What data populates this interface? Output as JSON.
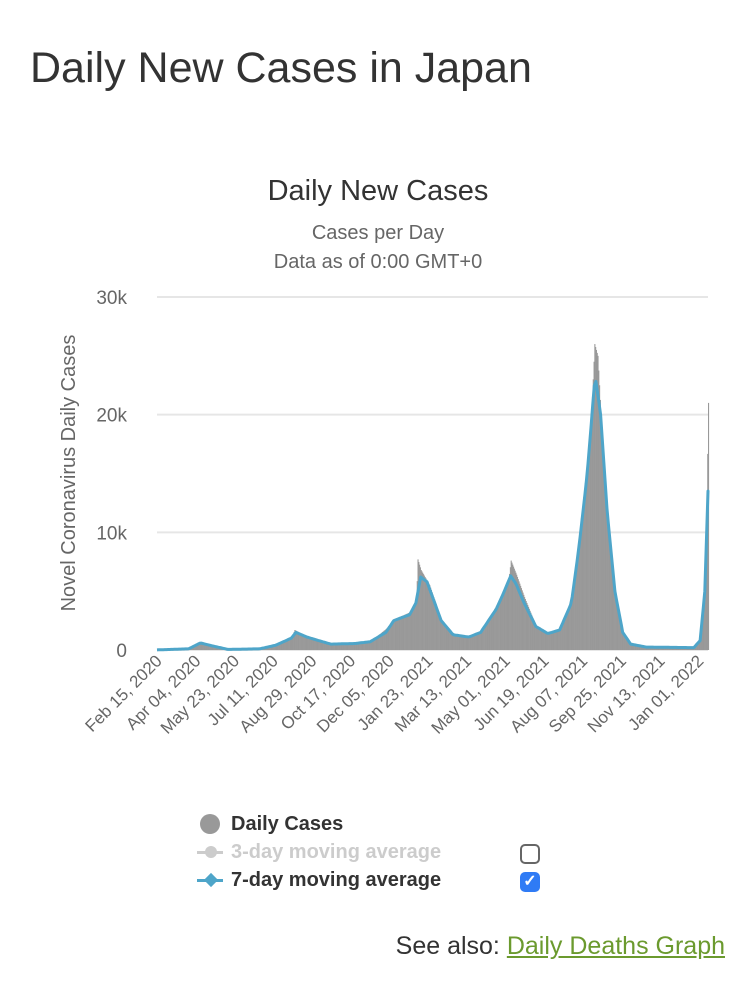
{
  "page_title": "Daily New Cases in Japan",
  "chart_data": {
    "type": "bar",
    "title": "Daily New Cases",
    "subtitle": [
      "Cases per Day",
      "Data as of 0:00 GMT+0"
    ],
    "ylabel": "Novel Coronavirus Daily Cases",
    "xlabel": "",
    "x_start": "2020-02-15",
    "x_unit": "days since start",
    "xlim": [
      0,
      698
    ],
    "ylim": [
      0,
      30000
    ],
    "yticks": [
      0,
      10000,
      20000,
      30000
    ],
    "ytick_labels": [
      "0",
      "10k",
      "20k",
      "30k"
    ],
    "xtick_labels": [
      "Feb 15, 2020",
      "Apr 04, 2020",
      "May 23, 2020",
      "Jul 11, 2020",
      "Aug 29, 2020",
      "Oct 17, 2020",
      "Dec 05, 2020",
      "Jan 23, 2021",
      "Mar 13, 2021",
      "May 01, 2021",
      "Jun 19, 2021",
      "Aug 07, 2021",
      "Sep 25, 2021",
      "Nov 13, 2021",
      "Jan 01, 2022"
    ],
    "xtick_step_days": 49,
    "grid": true,
    "series": [
      {
        "name": "Daily Cases",
        "kind": "bar",
        "color": "#999999",
        "points": [
          [
            0,
            10
          ],
          [
            40,
            100
          ],
          [
            55,
            650
          ],
          [
            70,
            350
          ],
          [
            90,
            50
          ],
          [
            130,
            100
          ],
          [
            150,
            400
          ],
          [
            170,
            1000
          ],
          [
            174,
            1700
          ],
          [
            190,
            1100
          ],
          [
            220,
            500
          ],
          [
            250,
            550
          ],
          [
            270,
            700
          ],
          [
            290,
            1800
          ],
          [
            300,
            2600
          ],
          [
            320,
            3200
          ],
          [
            328,
            4000
          ],
          [
            330,
            7700
          ],
          [
            334,
            6800
          ],
          [
            345,
            5500
          ],
          [
            360,
            2500
          ],
          [
            375,
            1300
          ],
          [
            395,
            1100
          ],
          [
            410,
            1500
          ],
          [
            430,
            3800
          ],
          [
            440,
            5300
          ],
          [
            445,
            5900
          ],
          [
            448,
            7600
          ],
          [
            455,
            6400
          ],
          [
            465,
            4500
          ],
          [
            480,
            2000
          ],
          [
            495,
            1400
          ],
          [
            510,
            1800
          ],
          [
            525,
            4200
          ],
          [
            535,
            10000
          ],
          [
            545,
            16000
          ],
          [
            550,
            20000
          ],
          [
            554,
            26000
          ],
          [
            558,
            25000
          ],
          [
            562,
            20000
          ],
          [
            570,
            12000
          ],
          [
            580,
            5000
          ],
          [
            590,
            1500
          ],
          [
            600,
            500
          ],
          [
            620,
            250
          ],
          [
            680,
            200
          ],
          [
            688,
            800
          ],
          [
            692,
            3000
          ],
          [
            695,
            8000
          ],
          [
            698,
            21000
          ]
        ]
      },
      {
        "name": "3-day moving average",
        "kind": "line",
        "color": "#cccccc",
        "visible": false
      },
      {
        "name": "7-day moving average",
        "kind": "line",
        "color": "#4ea5c9",
        "visible": true,
        "points": [
          [
            0,
            10
          ],
          [
            40,
            100
          ],
          [
            55,
            600
          ],
          [
            70,
            350
          ],
          [
            90,
            50
          ],
          [
            130,
            100
          ],
          [
            150,
            400
          ],
          [
            170,
            1000
          ],
          [
            176,
            1500
          ],
          [
            190,
            1100
          ],
          [
            220,
            500
          ],
          [
            250,
            550
          ],
          [
            270,
            700
          ],
          [
            290,
            1500
          ],
          [
            300,
            2500
          ],
          [
            320,
            3000
          ],
          [
            328,
            4000
          ],
          [
            334,
            6200
          ],
          [
            342,
            5800
          ],
          [
            360,
            2500
          ],
          [
            375,
            1300
          ],
          [
            395,
            1100
          ],
          [
            410,
            1500
          ],
          [
            430,
            3500
          ],
          [
            440,
            5000
          ],
          [
            448,
            6300
          ],
          [
            455,
            5600
          ],
          [
            465,
            4000
          ],
          [
            480,
            2000
          ],
          [
            495,
            1400
          ],
          [
            510,
            1700
          ],
          [
            525,
            4000
          ],
          [
            535,
            9000
          ],
          [
            545,
            15000
          ],
          [
            555,
            23300
          ],
          [
            562,
            20000
          ],
          [
            570,
            12000
          ],
          [
            580,
            5000
          ],
          [
            590,
            1500
          ],
          [
            600,
            500
          ],
          [
            620,
            250
          ],
          [
            680,
            200
          ],
          [
            688,
            800
          ],
          [
            694,
            5000
          ],
          [
            698,
            13500
          ]
        ]
      }
    ]
  },
  "legend": {
    "daily": "Daily Cases",
    "ma3": "3-day moving average",
    "ma7": "7-day moving average",
    "ma3_checked": false,
    "ma7_checked": true
  },
  "see_also": {
    "label": "See also:",
    "link": "Daily Deaths Graph"
  }
}
